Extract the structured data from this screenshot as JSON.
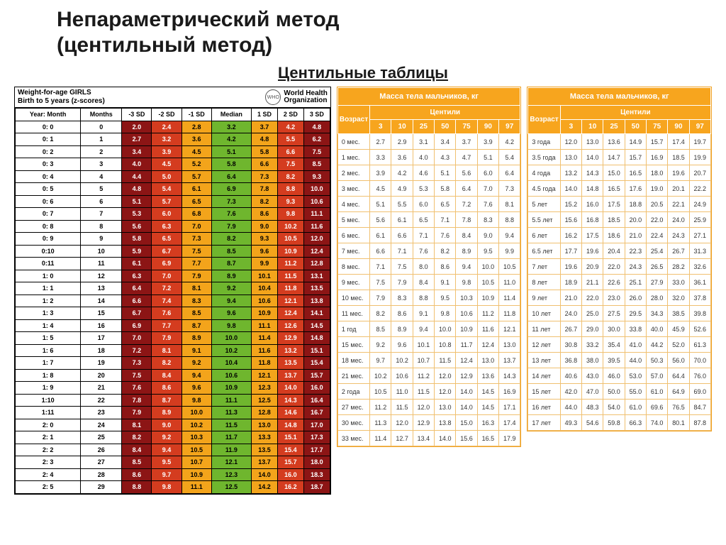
{
  "title_line1": "Непараметрический метод",
  "title_line2": "(центильный метод)",
  "subtitle": "Центильные таблицы",
  "who": {
    "title_l1": "Weight-for-age  GIRLS",
    "title_l2": "Birth to 5 years (z-scores)",
    "org_l1": "World Health",
    "org_l2": "Organization",
    "logo_abbr": "WHO",
    "columns": [
      "Year: Month",
      "Months",
      "-3 SD",
      "-2 SD",
      "-1 SD",
      "Median",
      "1 SD",
      "2 SD",
      "3 SD"
    ],
    "colors": {
      "-3": "#8c1515",
      "-2": "#d43c1f",
      "-1": "#f3a41b",
      "0": "#6fb62e",
      "1": "#f3a41b",
      "2": "#d43c1f",
      "3": "#8c1515"
    },
    "text_dark": "#000000",
    "text_light": "#ffffff",
    "rows": [
      [
        "0: 0",
        "0",
        "2.0",
        "2.4",
        "2.8",
        "3.2",
        "3.7",
        "4.2",
        "4.8"
      ],
      [
        "0: 1",
        "1",
        "2.7",
        "3.2",
        "3.6",
        "4.2",
        "4.8",
        "5.5",
        "6.2"
      ],
      [
        "0: 2",
        "2",
        "3.4",
        "3.9",
        "4.5",
        "5.1",
        "5.8",
        "6.6",
        "7.5"
      ],
      [
        "0: 3",
        "3",
        "4.0",
        "4.5",
        "5.2",
        "5.8",
        "6.6",
        "7.5",
        "8.5"
      ],
      [
        "0: 4",
        "4",
        "4.4",
        "5.0",
        "5.7",
        "6.4",
        "7.3",
        "8.2",
        "9.3"
      ],
      [
        "0: 5",
        "5",
        "4.8",
        "5.4",
        "6.1",
        "6.9",
        "7.8",
        "8.8",
        "10.0"
      ],
      [
        "0: 6",
        "6",
        "5.1",
        "5.7",
        "6.5",
        "7.3",
        "8.2",
        "9.3",
        "10.6"
      ],
      [
        "0: 7",
        "7",
        "5.3",
        "6.0",
        "6.8",
        "7.6",
        "8.6",
        "9.8",
        "11.1"
      ],
      [
        "0: 8",
        "8",
        "5.6",
        "6.3",
        "7.0",
        "7.9",
        "9.0",
        "10.2",
        "11.6"
      ],
      [
        "0: 9",
        "9",
        "5.8",
        "6.5",
        "7.3",
        "8.2",
        "9.3",
        "10.5",
        "12.0"
      ],
      [
        "0:10",
        "10",
        "5.9",
        "6.7",
        "7.5",
        "8.5",
        "9.6",
        "10.9",
        "12.4"
      ],
      [
        "0:11",
        "11",
        "6.1",
        "6.9",
        "7.7",
        "8.7",
        "9.9",
        "11.2",
        "12.8"
      ],
      [
        "1: 0",
        "12",
        "6.3",
        "7.0",
        "7.9",
        "8.9",
        "10.1",
        "11.5",
        "13.1"
      ],
      [
        "1: 1",
        "13",
        "6.4",
        "7.2",
        "8.1",
        "9.2",
        "10.4",
        "11.8",
        "13.5"
      ],
      [
        "1: 2",
        "14",
        "6.6",
        "7.4",
        "8.3",
        "9.4",
        "10.6",
        "12.1",
        "13.8"
      ],
      [
        "1: 3",
        "15",
        "6.7",
        "7.6",
        "8.5",
        "9.6",
        "10.9",
        "12.4",
        "14.1"
      ],
      [
        "1: 4",
        "16",
        "6.9",
        "7.7",
        "8.7",
        "9.8",
        "11.1",
        "12.6",
        "14.5"
      ],
      [
        "1: 5",
        "17",
        "7.0",
        "7.9",
        "8.9",
        "10.0",
        "11.4",
        "12.9",
        "14.8"
      ],
      [
        "1: 6",
        "18",
        "7.2",
        "8.1",
        "9.1",
        "10.2",
        "11.6",
        "13.2",
        "15.1"
      ],
      [
        "1: 7",
        "19",
        "7.3",
        "8.2",
        "9.2",
        "10.4",
        "11.8",
        "13.5",
        "15.4"
      ],
      [
        "1: 8",
        "20",
        "7.5",
        "8.4",
        "9.4",
        "10.6",
        "12.1",
        "13.7",
        "15.7"
      ],
      [
        "1: 9",
        "21",
        "7.6",
        "8.6",
        "9.6",
        "10.9",
        "12.3",
        "14.0",
        "16.0"
      ],
      [
        "1:10",
        "22",
        "7.8",
        "8.7",
        "9.8",
        "11.1",
        "12.5",
        "14.3",
        "16.4"
      ],
      [
        "1:11",
        "23",
        "7.9",
        "8.9",
        "10.0",
        "11.3",
        "12.8",
        "14.6",
        "16.7"
      ],
      [
        "2: 0",
        "24",
        "8.1",
        "9.0",
        "10.2",
        "11.5",
        "13.0",
        "14.8",
        "17.0"
      ],
      [
        "2: 1",
        "25",
        "8.2",
        "9.2",
        "10.3",
        "11.7",
        "13.3",
        "15.1",
        "17.3"
      ],
      [
        "2: 2",
        "26",
        "8.4",
        "9.4",
        "10.5",
        "11.9",
        "13.5",
        "15.4",
        "17.7"
      ],
      [
        "2: 3",
        "27",
        "8.5",
        "9.5",
        "10.7",
        "12.1",
        "13.7",
        "15.7",
        "18.0"
      ],
      [
        "2: 4",
        "28",
        "8.6",
        "9.7",
        "10.9",
        "12.3",
        "14.0",
        "16.0",
        "18.3"
      ],
      [
        "2: 5",
        "29",
        "8.8",
        "9.8",
        "11.1",
        "12.5",
        "14.2",
        "16.2",
        "18.7"
      ]
    ]
  },
  "centile": {
    "title": "Масса тела мальчиков, кг",
    "age_header": "Возраст",
    "centile_header": "Центили",
    "centiles": [
      "3",
      "10",
      "25",
      "50",
      "75",
      "90",
      "97"
    ],
    "table1_rows": [
      [
        "0 мес.",
        "2.7",
        "2.9",
        "3.1",
        "3.4",
        "3.7",
        "3.9",
        "4.2"
      ],
      [
        "1 мес.",
        "3.3",
        "3.6",
        "4.0",
        "4.3",
        "4.7",
        "5.1",
        "5.4"
      ],
      [
        "2 мес.",
        "3.9",
        "4.2",
        "4.6",
        "5.1",
        "5.6",
        "6.0",
        "6.4"
      ],
      [
        "3 мес.",
        "4.5",
        "4.9",
        "5.3",
        "5.8",
        "6.4",
        "7.0",
        "7.3"
      ],
      [
        "4 мес.",
        "5.1",
        "5.5",
        "6.0",
        "6.5",
        "7.2",
        "7.6",
        "8.1"
      ],
      [
        "5 мес.",
        "5.6",
        "6.1",
        "6.5",
        "7.1",
        "7.8",
        "8.3",
        "8.8"
      ],
      [
        "6 мес.",
        "6.1",
        "6.6",
        "7.1",
        "7.6",
        "8.4",
        "9.0",
        "9.4"
      ],
      [
        "7 мес.",
        "6.6",
        "7.1",
        "7.6",
        "8.2",
        "8.9",
        "9.5",
        "9.9"
      ],
      [
        "8 мес.",
        "7.1",
        "7.5",
        "8.0",
        "8.6",
        "9.4",
        "10.0",
        "10.5"
      ],
      [
        "9 мес.",
        "7.5",
        "7.9",
        "8.4",
        "9.1",
        "9.8",
        "10.5",
        "11.0"
      ],
      [
        "10 мес.",
        "7.9",
        "8.3",
        "8.8",
        "9.5",
        "10.3",
        "10.9",
        "11.4"
      ],
      [
        "11 мес.",
        "8.2",
        "8.6",
        "9.1",
        "9.8",
        "10.6",
        "11.2",
        "11.8"
      ],
      [
        "1 год",
        "8.5",
        "8.9",
        "9.4",
        "10.0",
        "10.9",
        "11.6",
        "12.1"
      ],
      [
        "15 мес.",
        "9.2",
        "9.6",
        "10.1",
        "10.8",
        "11.7",
        "12.4",
        "13.0"
      ],
      [
        "18 мес.",
        "9.7",
        "10.2",
        "10.7",
        "11.5",
        "12.4",
        "13.0",
        "13.7"
      ],
      [
        "21 мес.",
        "10.2",
        "10.6",
        "11.2",
        "12.0",
        "12.9",
        "13.6",
        "14.3"
      ],
      [
        "2 года",
        "10.5",
        "11.0",
        "11.5",
        "12.0",
        "14.0",
        "14.5",
        "16.9"
      ],
      [
        "27 мес.",
        "11.2",
        "11.5",
        "12.0",
        "13.0",
        "14.0",
        "14.5",
        "17.1"
      ],
      [
        "30 мес.",
        "11.3",
        "12.0",
        "12.9",
        "13.8",
        "15.0",
        "16.3",
        "17.4"
      ],
      [
        "33 мес.",
        "11.4",
        "12.7",
        "13.4",
        "14.0",
        "15.6",
        "16.5",
        "17.9"
      ]
    ],
    "table2_rows": [
      [
        "3 года",
        "12.0",
        "13.0",
        "13.6",
        "14.9",
        "15.7",
        "17.4",
        "19.7"
      ],
      [
        "3.5 года",
        "13.0",
        "14.0",
        "14.7",
        "15.7",
        "16.9",
        "18.5",
        "19.9"
      ],
      [
        "4 года",
        "13.2",
        "14.3",
        "15.0",
        "16.5",
        "18.0",
        "19.6",
        "20.7"
      ],
      [
        "4.5 года",
        "14.0",
        "14.8",
        "16.5",
        "17.6",
        "19.0",
        "20.1",
        "22.2"
      ],
      [
        "5 лет",
        "15.2",
        "16.0",
        "17.5",
        "18.8",
        "20.5",
        "22.1",
        "24.9"
      ],
      [
        "5.5 лет",
        "15.6",
        "16.8",
        "18.5",
        "20.0",
        "22.0",
        "24.0",
        "25.9"
      ],
      [
        "6 лет",
        "16.2",
        "17.5",
        "18.6",
        "21.0",
        "22.4",
        "24.3",
        "27.1"
      ],
      [
        "6.5 лет",
        "17.7",
        "19.6",
        "20.4",
        "22.3",
        "25.4",
        "26.7",
        "31.3"
      ],
      [
        "7 лет",
        "19.6",
        "20.9",
        "22.0",
        "24.3",
        "26.5",
        "28.2",
        "32.6"
      ],
      [
        "8 лет",
        "18.9",
        "21.1",
        "22.6",
        "25.1",
        "27.9",
        "33.0",
        "36.1"
      ],
      [
        "9 лет",
        "21.0",
        "22.0",
        "23.0",
        "26.0",
        "28.0",
        "32.0",
        "37.8"
      ],
      [
        "10 лет",
        "24.0",
        "25.0",
        "27.5",
        "29.5",
        "34.3",
        "38.5",
        "39.8"
      ],
      [
        "11 лет",
        "26.7",
        "29.0",
        "30.0",
        "33.8",
        "40.0",
        "45.9",
        "52.6"
      ],
      [
        "12 лет",
        "30.8",
        "33.2",
        "35.4",
        "41.0",
        "44.2",
        "52.0",
        "61.3"
      ],
      [
        "13 лет",
        "36.8",
        "38.0",
        "39.5",
        "44.0",
        "50.3",
        "56.0",
        "70.0"
      ],
      [
        "14 лет",
        "40.6",
        "43.0",
        "46.0",
        "53.0",
        "57.0",
        "64.4",
        "76.0"
      ],
      [
        "15 лет",
        "42.0",
        "47.0",
        "50.0",
        "55.0",
        "61.0",
        "64.9",
        "69.0"
      ],
      [
        "16 лет",
        "44.0",
        "48.3",
        "54.0",
        "61.0",
        "69.6",
        "76.5",
        "84.7"
      ],
      [
        "17 лет",
        "49.3",
        "54.6",
        "59.8",
        "66.3",
        "74.0",
        "80.1",
        "87.8"
      ]
    ]
  }
}
